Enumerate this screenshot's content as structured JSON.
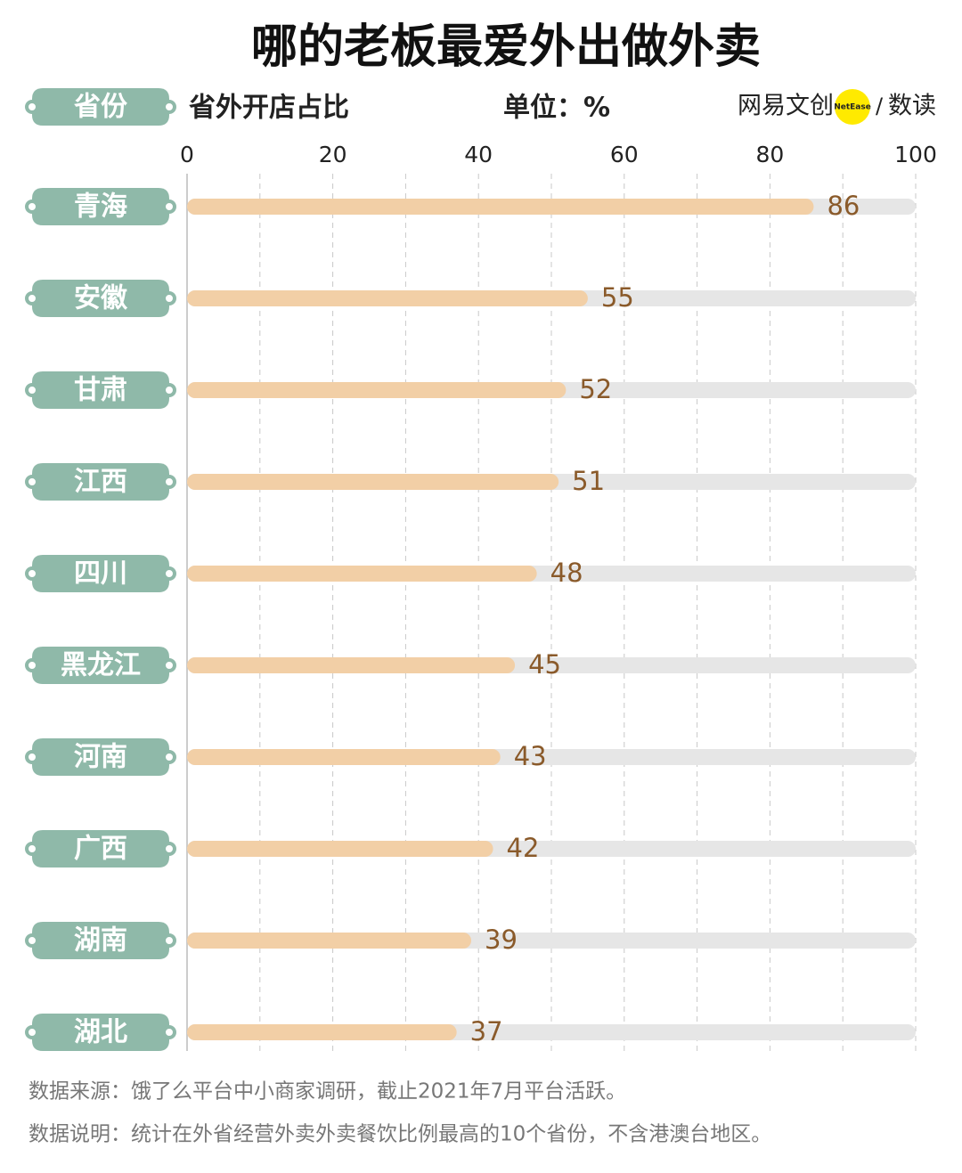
{
  "chart_data": {
    "type": "bar",
    "orientation": "horizontal",
    "title": "哪的老板最爱外出做外卖",
    "y_label": "省份",
    "x_label": "省外开店占比",
    "unit_note": "单位：%",
    "logo": {
      "left": "网易文创",
      "badge": "NetEase",
      "separator": "/",
      "right": "数读"
    },
    "categories": [
      "青海",
      "安徽",
      "甘肃",
      "江西",
      "四川",
      "黑龙江",
      "河南",
      "广西",
      "湖南",
      "湖北"
    ],
    "values": [
      86,
      55,
      52,
      51,
      48,
      45,
      43,
      42,
      39,
      37
    ],
    "color": "#f2cfa6",
    "track_color": "#e6e6e6",
    "label_color": "#8a5a2a",
    "category_color": "#8fb9a9",
    "xlim": [
      0,
      100
    ],
    "xticks": [
      0,
      20,
      40,
      60,
      80,
      100
    ],
    "grid": true,
    "notes": [
      "数据来源：饿了么平台中小商家调研，截止2021年7月平台活跃。",
      "数据说明：统计在外省经营外卖外卖餐饮比例最高的10个省份，不含港澳台地区。"
    ]
  }
}
